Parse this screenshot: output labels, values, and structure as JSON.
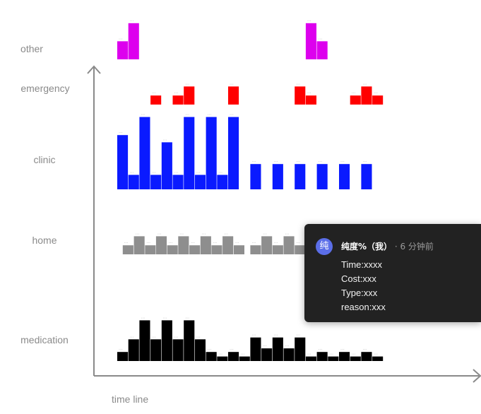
{
  "chart_data": {
    "type": "bar",
    "xlabel": "time line",
    "ylabel": "",
    "categories": [
      "other",
      "emergency",
      "clinic",
      "home",
      "medication"
    ],
    "gap_label": "...",
    "series": [
      {
        "name": "other",
        "color": "#dd00ee",
        "bars": [
          {
            "x": 0,
            "v": 2
          },
          {
            "x": 1,
            "v": 4
          },
          {
            "x": 17,
            "v": 4
          },
          {
            "x": 18,
            "v": 2
          }
        ]
      },
      {
        "name": "emergency",
        "color": "#ff0000",
        "bars": [
          {
            "x": 3,
            "v": 1
          },
          {
            "x": 5,
            "v": 1
          },
          {
            "x": 6,
            "v": 2
          },
          {
            "x": 10,
            "v": 2
          },
          {
            "x": 16,
            "v": 2
          },
          {
            "x": 17,
            "v": 1
          },
          {
            "x": 21,
            "v": 1
          },
          {
            "x": 22,
            "v": 2
          },
          {
            "x": 23,
            "v": 1
          }
        ]
      },
      {
        "name": "clinic",
        "color": "#0a1aff",
        "bars": [
          {
            "x": 0,
            "v": 6
          },
          {
            "x": 1,
            "v": 1.6
          },
          {
            "x": 2,
            "v": 8
          },
          {
            "x": 3,
            "v": 1.6
          },
          {
            "x": 4,
            "v": 5.2
          },
          {
            "x": 5,
            "v": 1.6
          },
          {
            "x": 6,
            "v": 8
          },
          {
            "x": 7,
            "v": 1.6
          },
          {
            "x": 8,
            "v": 8
          },
          {
            "x": 9,
            "v": 1.6
          },
          {
            "x": 10,
            "v": 8
          },
          {
            "x": 12,
            "v": 2.8
          },
          {
            "x": 14,
            "v": 2.8
          },
          {
            "x": 16,
            "v": 2.8
          },
          {
            "x": 18,
            "v": 2.8
          },
          {
            "x": 20,
            "v": 2.8
          },
          {
            "x": 22,
            "v": 2.8
          }
        ]
      },
      {
        "name": "home",
        "color": "#8e8e8e",
        "bars": [
          {
            "x": 0.5,
            "v": 1
          },
          {
            "x": 1.5,
            "v": 2
          },
          {
            "x": 2.5,
            "v": 1
          },
          {
            "x": 3.5,
            "v": 2
          },
          {
            "x": 4.5,
            "v": 1
          },
          {
            "x": 5.5,
            "v": 2
          },
          {
            "x": 6.5,
            "v": 1
          },
          {
            "x": 7.5,
            "v": 2
          },
          {
            "x": 8.5,
            "v": 1
          },
          {
            "x": 9.5,
            "v": 2
          },
          {
            "x": 10.5,
            "v": 1
          },
          {
            "x": 12,
            "v": 1
          },
          {
            "x": 13,
            "v": 2
          },
          {
            "x": 14,
            "v": 1
          },
          {
            "x": 15,
            "v": 2
          },
          {
            "x": 16,
            "v": 1
          },
          {
            "x": 17,
            "v": 2
          }
        ]
      },
      {
        "name": "medication",
        "color": "#000000",
        "bars": [
          {
            "x": 0,
            "v": 1
          },
          {
            "x": 1,
            "v": 2.4
          },
          {
            "x": 2,
            "v": 4.5
          },
          {
            "x": 3,
            "v": 2.4
          },
          {
            "x": 4,
            "v": 4.5
          },
          {
            "x": 5,
            "v": 2.4
          },
          {
            "x": 6,
            "v": 4.5
          },
          {
            "x": 7,
            "v": 2.4
          },
          {
            "x": 8,
            "v": 1
          },
          {
            "x": 9,
            "v": 0.5
          },
          {
            "x": 10,
            "v": 1
          },
          {
            "x": 11,
            "v": 0.5
          },
          {
            "x": 12,
            "v": 2.6
          },
          {
            "x": 13,
            "v": 1.4
          },
          {
            "x": 14,
            "v": 2.6
          },
          {
            "x": 15,
            "v": 1.4
          },
          {
            "x": 16,
            "v": 2.6
          },
          {
            "x": 17,
            "v": 0.5
          },
          {
            "x": 18,
            "v": 1
          },
          {
            "x": 19,
            "v": 0.5
          },
          {
            "x": 20,
            "v": 1
          },
          {
            "x": 21,
            "v": 0.5
          },
          {
            "x": 22,
            "v": 1
          },
          {
            "x": 23,
            "v": 0.5
          }
        ]
      }
    ]
  },
  "tooltip": {
    "avatar": "纯",
    "name": "纯度%（我）",
    "time": " · 6 分钟前",
    "lines": [
      "Time:xxxx",
      "Cost:xxx",
      "Type:xxx",
      "reason:xxx"
    ]
  },
  "colors": {
    "axis": "#8a8a8a",
    "label": "#8a8a8a",
    "tooltip_bg": "#222222",
    "avatar": "#5b6ee8"
  }
}
